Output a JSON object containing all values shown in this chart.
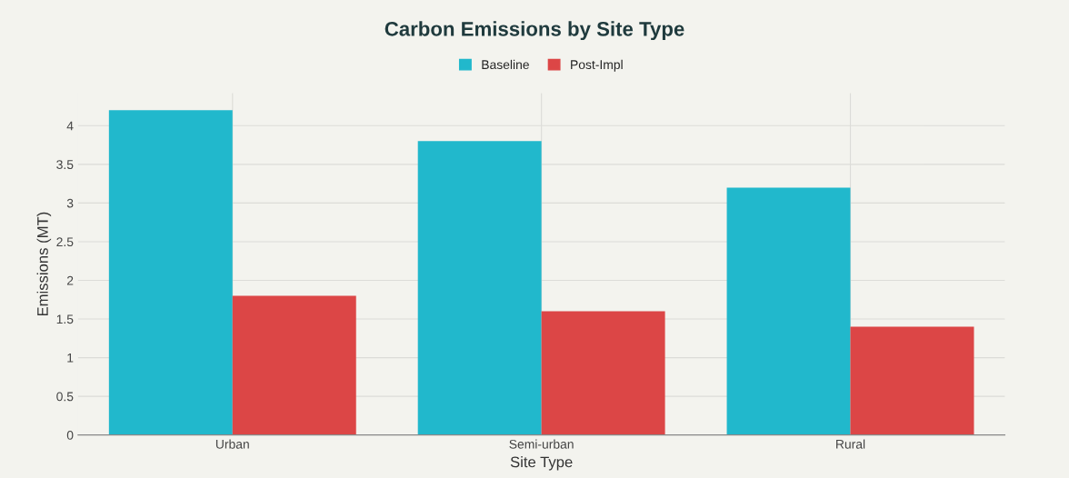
{
  "chart_data": {
    "type": "bar",
    "title": "Carbon Emissions by Site Type",
    "xlabel": "Site Type",
    "ylabel": "Emissions (MT)",
    "categories": [
      "Urban",
      "Semi-urban",
      "Rural"
    ],
    "series": [
      {
        "name": "Baseline",
        "color": "#21b8cc",
        "values": [
          4.2,
          3.8,
          3.2
        ]
      },
      {
        "name": "Post-Impl",
        "color": "#dc4646",
        "values": [
          1.8,
          1.6,
          1.4
        ]
      }
    ],
    "ylim": [
      0,
      4.42
    ],
    "yticks": [
      0,
      0.5,
      1,
      1.5,
      2,
      2.5,
      3,
      3.5,
      4
    ],
    "grid": true,
    "legend": "top"
  }
}
